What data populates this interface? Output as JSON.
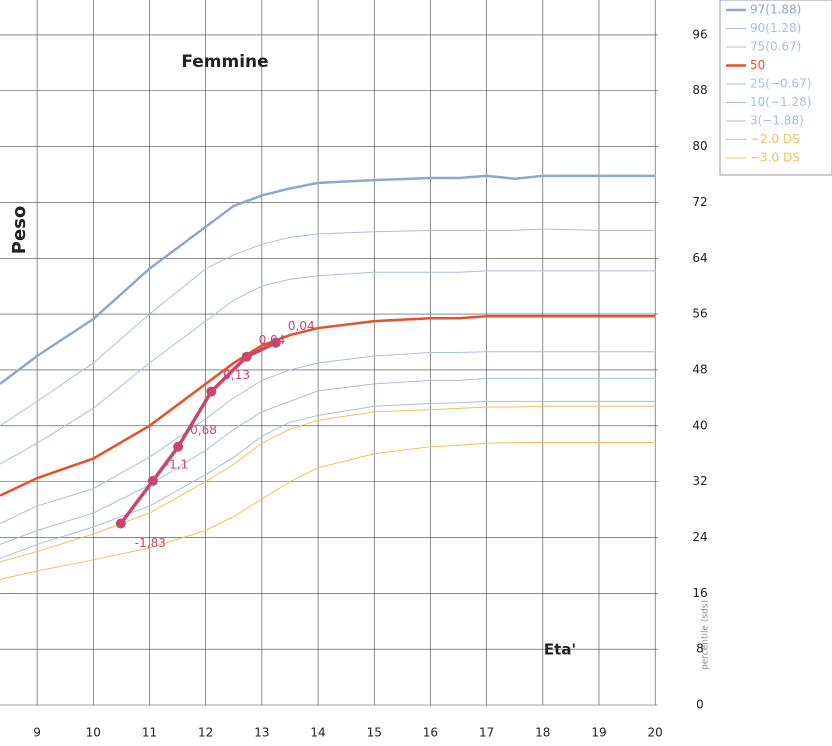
{
  "chart_data": {
    "type": "line",
    "title": "Femmine",
    "ylabel": "Peso",
    "xlabel": "Eta'",
    "legend_note": "percentile (sds)",
    "x": [
      8.34,
      9,
      10,
      11,
      12,
      12.5,
      13,
      13.5,
      14,
      15,
      16,
      16.5,
      17,
      17.5,
      18,
      19,
      20
    ],
    "series": [
      {
        "name": "97(1.88)",
        "color": "#8fa8c8",
        "width": 2.5,
        "values": [
          46,
          50,
          55.3,
          62.5,
          68.5,
          71.5,
          73,
          74,
          74.8,
          75.2,
          75.5,
          75.5,
          75.8,
          75.4,
          75.8,
          75.8,
          75.8
        ]
      },
      {
        "name": "90(1.28)",
        "color": "#a9bfdb",
        "width": 1,
        "values": [
          40,
          43.5,
          49,
          56,
          62.5,
          64.5,
          66,
          67,
          67.5,
          67.8,
          68,
          68,
          68,
          68,
          68.2,
          68,
          68
        ]
      },
      {
        "name": "75(0.67)",
        "color": "#a9bfdb",
        "width": 1,
        "values": [
          34.5,
          37.5,
          42.5,
          49,
          55,
          58,
          60,
          61,
          61.5,
          62,
          62,
          62,
          62.2,
          62.2,
          62.2,
          62.2,
          62.2
        ]
      },
      {
        "name": "50",
        "color": "#e8502a",
        "width": 2.5,
        "values": [
          30,
          32.5,
          35.3,
          40,
          46,
          49,
          51.5,
          53,
          54,
          55,
          55.4,
          55.4,
          55.7,
          55.7,
          55.7,
          55.7,
          55.7
        ]
      },
      {
        "name": "25(−0.67)",
        "color": "#a9bfdb",
        "width": 1,
        "values": [
          26,
          28.5,
          31,
          35.5,
          41,
          44,
          46.5,
          48,
          49,
          50,
          50.5,
          50.5,
          50.6,
          50.6,
          50.6,
          50.6,
          50.6
        ]
      },
      {
        "name": "10(−1.28)",
        "color": "#a9bfdb",
        "width": 1,
        "values": [
          23,
          25,
          27.5,
          31.5,
          36.5,
          39.5,
          42,
          43.5,
          45,
          46,
          46.5,
          46.5,
          46.8,
          46.8,
          46.8,
          46.8,
          46.8
        ]
      },
      {
        "name": "3(−1.88)",
        "color": "#a9bfdb",
        "width": 1,
        "values": [
          21,
          23,
          25.5,
          28.5,
          33,
          35.5,
          38.5,
          40.5,
          41.5,
          42.8,
          43.2,
          43.3,
          43.5,
          43.5,
          43.5,
          43.5,
          43.5
        ]
      },
      {
        "name": "−2.0 DS",
        "color": "#f0c060",
        "width": 1,
        "values": [
          20.5,
          22,
          24.5,
          27.5,
          32,
          34.5,
          37.5,
          39.5,
          40.8,
          42,
          42.3,
          42.5,
          42.7,
          42.7,
          42.8,
          42.8,
          42.8
        ]
      },
      {
        "name": "−3.0 DS",
        "color": "#f0c060",
        "width": 1,
        "values": [
          18,
          19.2,
          20.8,
          22.5,
          25,
          27,
          29.5,
          32,
          34,
          36,
          37,
          37.2,
          37.5,
          37.6,
          37.6,
          37.6,
          37.6
        ]
      }
    ],
    "patient": {
      "color": "#c8476e",
      "x": [
        10.49,
        11.06,
        11.51,
        12.1,
        12.73,
        13.25
      ],
      "values": [
        26,
        32.1,
        37,
        44.9,
        49.9,
        51.9
      ],
      "labels": [
        "-1,83",
        "-1,1",
        "0,68",
        "0,13",
        "0,04",
        "0,04"
      ]
    },
    "xlim": [
      8.34,
      20.05
    ],
    "ylim": [
      0,
      101
    ],
    "xticks": [
      9,
      10,
      11,
      12,
      13,
      14,
      15,
      16,
      17,
      18,
      19,
      20
    ],
    "yticks": [
      0,
      8,
      16,
      24,
      32,
      40,
      48,
      56,
      64,
      72,
      80,
      88,
      96
    ],
    "grid": true
  }
}
